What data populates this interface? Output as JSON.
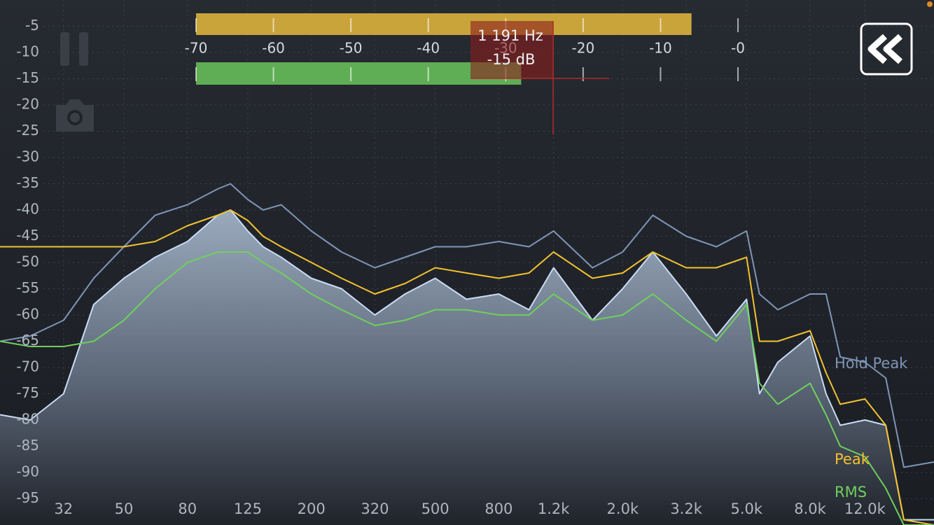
{
  "chart_data": {
    "type": "line",
    "xscale": "log",
    "grid": true,
    "xlim": [
      20,
      20000
    ],
    "ylim": [
      -100,
      0
    ],
    "xticks": [
      32,
      50,
      80,
      125,
      200,
      320,
      500,
      800,
      {
        "value": 1200,
        "label": "1.2k"
      },
      {
        "value": 2000,
        "label": "2.0k"
      },
      {
        "value": 3200,
        "label": "3.2k"
      },
      {
        "value": 5000,
        "label": "5.0k"
      },
      {
        "value": 8000,
        "label": "8.0k"
      },
      {
        "value": 12000,
        "label": "12.0k"
      }
    ],
    "yticks": [
      -5,
      -10,
      -15,
      -20,
      -25,
      -30,
      -35,
      -40,
      -45,
      -50,
      -55,
      -60,
      -65,
      -70,
      -75,
      -80,
      -85,
      -90,
      -95
    ],
    "x": [
      20,
      25,
      32,
      40,
      50,
      63,
      80,
      100,
      110,
      125,
      140,
      160,
      200,
      250,
      320,
      400,
      500,
      630,
      800,
      1000,
      1200,
      1600,
      2000,
      2500,
      3200,
      4000,
      5000,
      5500,
      6300,
      8000,
      9000,
      10000,
      12000,
      14000,
      16000,
      20000
    ],
    "series": [
      {
        "name": "Hold Peak",
        "color": "#7f95b8",
        "values": [
          -65,
          -64,
          -61,
          -53,
          -47,
          -41,
          -39,
          -36,
          -35,
          -38,
          -40,
          -39,
          -44,
          -48,
          -51,
          -49,
          -47,
          -47,
          -46,
          -47,
          -44,
          -51,
          -48,
          -41,
          -45,
          -47,
          -44,
          -56,
          -59,
          -56,
          -56,
          -68,
          -69,
          -72,
          -89,
          -88
        ]
      },
      {
        "color": "#c8dcf5",
        "area": true,
        "values": [
          -79,
          -80,
          -75,
          -58,
          -53,
          -49,
          -46,
          -41,
          -40,
          -44,
          -47,
          -49,
          -53,
          -55,
          -60,
          -56,
          -53,
          -57,
          -56,
          -59,
          -51,
          -61,
          -55,
          -48,
          -56,
          -64,
          -57,
          -75,
          -69,
          -64,
          -75,
          -81,
          -80,
          -81,
          -99,
          -99
        ]
      },
      {
        "name": "Peak",
        "color": "#f2c230",
        "values": [
          -47,
          -47,
          -47,
          -47,
          -47,
          -46,
          -43,
          -41,
          -40,
          -42,
          -45,
          -47,
          -50,
          -53,
          -56,
          -54,
          -51,
          -52,
          -53,
          -52,
          -48,
          -53,
          -52,
          -48,
          -51,
          -51,
          -49,
          -65,
          -65,
          -63,
          -71,
          -77,
          -76,
          -81,
          -99,
          -100
        ]
      },
      {
        "name": "RMS",
        "color": "#6fd05c",
        "values": [
          -65,
          -66,
          -66,
          -65,
          -61,
          -55,
          -50,
          -48,
          -48,
          -48,
          -50,
          -52,
          -56,
          -59,
          -62,
          -61,
          -59,
          -59,
          -60,
          -60,
          -56,
          -61,
          -60,
          -56,
          -61,
          -65,
          -58,
          -73,
          -77,
          -73,
          -79,
          -85,
          -87,
          -93,
          -100,
          -100
        ]
      }
    ]
  },
  "level_meter": {
    "lim": [
      -70,
      0
    ],
    "ticks": [
      -70,
      -60,
      -50,
      -40,
      -30,
      -20,
      -10,
      {
        "value": 0,
        "label": "-0"
      }
    ],
    "peak": -6,
    "peak_color": "#c9a43a",
    "rms": -28,
    "rms_color": "#5fae55"
  },
  "cursor": {
    "frequency_label": "1 191 Hz",
    "level_label": "-15 dB"
  }
}
